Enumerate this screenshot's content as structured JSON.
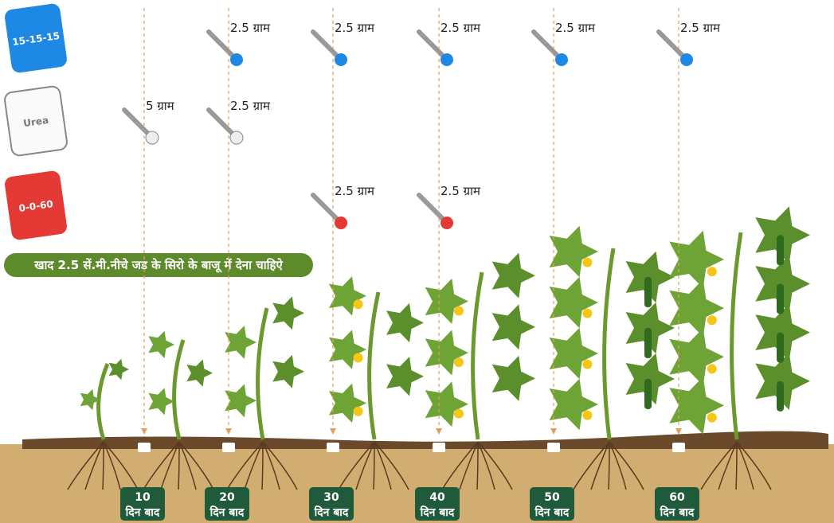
{
  "bags": {
    "npk": "15-15-15",
    "urea": "Urea",
    "potash": "0-0-60"
  },
  "instruction": "खाद 2.5 सें.मी.नीचे जड के सिरो के बाजू में देना चाहिऐ",
  "stages": [
    {
      "day": "10",
      "unit": "दिन बाद",
      "urea": "5 ग्राम"
    },
    {
      "day": "20",
      "unit": "दिन बाद",
      "npk": "2.5 ग्राम",
      "urea": "2.5 ग्राम"
    },
    {
      "day": "30",
      "unit": "दिन बाद",
      "npk": "2.5 ग्राम",
      "potash": "2.5 ग्राम"
    },
    {
      "day": "40",
      "unit": "दिन बाद",
      "npk": "2.5 ग्राम",
      "potash": "2.5 ग्राम"
    },
    {
      "day": "50",
      "unit": "दिन बाद",
      "npk": "2.5 ग्राम"
    },
    {
      "day": "60",
      "unit": "दिन बाद",
      "npk": "2.5 ग्राम"
    }
  ]
}
